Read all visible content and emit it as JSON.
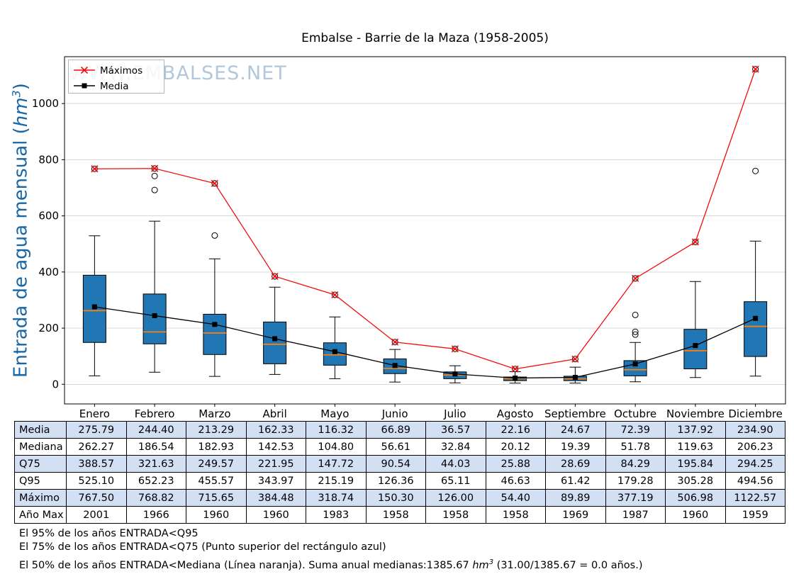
{
  "title": "Embalse - Barrie de la Maza (1958-2005)",
  "watermark": "WWW.EMBALSES.NET",
  "ylabel": {
    "prefix": "Entrada de agua mensual (",
    "unit": "hm",
    "exp": "3",
    "suffix": ")"
  },
  "chart_data": {
    "type": "boxplot",
    "categories": [
      "Enero",
      "Febrero",
      "Marzo",
      "Abril",
      "Mayo",
      "Junio",
      "Julio",
      "Agosto",
      "Septiembre",
      "Octubre",
      "Noviembre",
      "Diciembre"
    ],
    "ylim": [
      -70,
      1167
    ],
    "yticks": [
      0,
      200,
      400,
      600,
      800,
      1000
    ],
    "grid": "horizontal",
    "legend_position": "upper-left",
    "series": [
      {
        "name": "Máximos",
        "marker": "x",
        "color": "#f10c0c",
        "values": [
          767.5,
          768.82,
          715.65,
          384.48,
          318.74,
          150.3,
          126.0,
          54.4,
          89.89,
          377.19,
          506.98,
          1122.57
        ]
      },
      {
        "name": "Media",
        "marker": "square",
        "color": "#000000",
        "values": [
          275.79,
          244.4,
          213.29,
          162.33,
          116.32,
          66.89,
          36.57,
          22.16,
          24.67,
          72.39,
          137.92,
          234.9
        ]
      }
    ],
    "boxes": [
      {
        "q1": 149,
        "median": 262.27,
        "q3": 388.57,
        "whisker_low": 30,
        "whisker_high": 529,
        "fliers": [
          767.5
        ]
      },
      {
        "q1": 144,
        "median": 186.54,
        "q3": 321.63,
        "whisker_low": 43,
        "whisker_high": 581,
        "fliers": [
          692,
          742,
          768.82
        ]
      },
      {
        "q1": 106,
        "median": 182.93,
        "q3": 249.57,
        "whisker_low": 28,
        "whisker_high": 447,
        "fliers": [
          530,
          715.65
        ]
      },
      {
        "q1": 73,
        "median": 142.53,
        "q3": 221.95,
        "whisker_low": 35,
        "whisker_high": 346,
        "fliers": [
          384.48
        ]
      },
      {
        "q1": 68,
        "median": 104.8,
        "q3": 147.72,
        "whisker_low": 20,
        "whisker_high": 240,
        "fliers": [
          318.74
        ]
      },
      {
        "q1": 38,
        "median": 56.61,
        "q3": 90.54,
        "whisker_low": 8,
        "whisker_high": 124,
        "fliers": [
          150.3
        ]
      },
      {
        "q1": 20,
        "median": 32.84,
        "q3": 44.03,
        "whisker_low": 5,
        "whisker_high": 66,
        "fliers": [
          126.0
        ]
      },
      {
        "q1": 13,
        "median": 20.12,
        "q3": 25.88,
        "whisker_low": 4,
        "whisker_high": 45,
        "fliers": [
          54.4
        ]
      },
      {
        "q1": 13,
        "median": 19.39,
        "q3": 28.69,
        "whisker_low": 4,
        "whisker_high": 61,
        "fliers": [
          89.89
        ]
      },
      {
        "q1": 30,
        "median": 51.78,
        "q3": 84.29,
        "whisker_low": 9,
        "whisker_high": 149,
        "fliers": [
          177,
          187,
          247,
          377.19
        ]
      },
      {
        "q1": 55,
        "median": 119.63,
        "q3": 195.84,
        "whisker_low": 24,
        "whisker_high": 366,
        "fliers": [
          506.98
        ]
      },
      {
        "q1": 99,
        "median": 206.23,
        "q3": 294.25,
        "whisker_low": 29,
        "whisker_high": 510,
        "fliers": [
          760,
          1122.57
        ]
      }
    ],
    "colors": {
      "box_fill": "#2077b4",
      "median": "#ff7f0e",
      "max_line": "#f10c0c",
      "mean_line": "#000000",
      "grid": "#d9d9d9",
      "watermark": "#b2c8da",
      "ylabel": "#1766a6",
      "table_shaded_row": "#d3e0f4"
    }
  },
  "table": {
    "row_headers": [
      "Media",
      "Mediana",
      "Q75",
      "Q95",
      "Máximo",
      "Año Max"
    ],
    "columns": [
      "Enero",
      "Febrero",
      "Marzo",
      "Abril",
      "Mayo",
      "Junio",
      "Julio",
      "Agosto",
      "Septiembre",
      "Octubre",
      "Noviembre",
      "Diciembre"
    ],
    "rows": [
      [
        "275.79",
        "244.40",
        "213.29",
        "162.33",
        "116.32",
        "66.89",
        "36.57",
        "22.16",
        "24.67",
        "72.39",
        "137.92",
        "234.90"
      ],
      [
        "262.27",
        "186.54",
        "182.93",
        "142.53",
        "104.80",
        "56.61",
        "32.84",
        "20.12",
        "19.39",
        "51.78",
        "119.63",
        "206.23"
      ],
      [
        "388.57",
        "321.63",
        "249.57",
        "221.95",
        "147.72",
        "90.54",
        "44.03",
        "25.88",
        "28.69",
        "84.29",
        "195.84",
        "294.25"
      ],
      [
        "525.10",
        "652.23",
        "455.57",
        "343.97",
        "215.19",
        "126.36",
        "65.11",
        "46.63",
        "61.42",
        "179.28",
        "305.28",
        "494.56"
      ],
      [
        "767.50",
        "768.82",
        "715.65",
        "384.48",
        "318.74",
        "150.30",
        "126.00",
        "54.40",
        "89.89",
        "377.19",
        "506.98",
        "1122.57"
      ],
      [
        "2001",
        "1966",
        "1960",
        "1960",
        "1983",
        "1958",
        "1958",
        "1958",
        "1969",
        "1987",
        "1960",
        "1959"
      ]
    ]
  },
  "footnotes": {
    "line1": "El 95% de los años ENTRADA<Q95",
    "line2": "El 75% de los años ENTRADA<Q75 (Punto superior del rectángulo azul)",
    "line3_pre": "El 50% de los años ENTRADA<Mediana (Línea naranja). Suma anual medianas:1385.67 ",
    "line3_unit": "hm",
    "line3_exp": "3",
    "line3_post": " (31.00/1385.67 = 0.0 años.)"
  }
}
